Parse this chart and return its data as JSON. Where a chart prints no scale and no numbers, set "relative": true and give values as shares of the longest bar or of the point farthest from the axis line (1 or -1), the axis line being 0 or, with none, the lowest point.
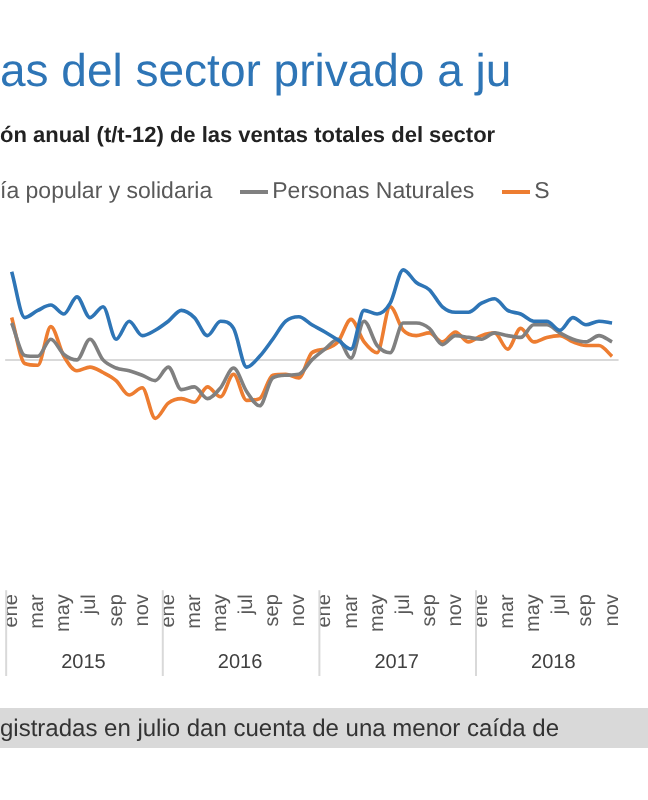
{
  "chart_data": {
    "type": "line",
    "title": "as del sector privado a ju",
    "subtitle": "ón anual (t/t-12) de las ventas totales del sector",
    "relative": true,
    "grid": false,
    "legend": "top",
    "marker": "none",
    "line_style": "solid",
    "categories": [
      "ene",
      null,
      "mar",
      null,
      "may",
      null,
      "jul",
      null,
      "sep",
      null,
      "nov",
      null,
      "ene",
      null,
      "mar",
      null,
      "may",
      null,
      "jul",
      null,
      "sep",
      null,
      "nov",
      null,
      "ene",
      null,
      "mar",
      null,
      "may",
      null,
      "jul",
      null,
      "sep",
      null,
      "nov",
      null,
      "ene",
      null,
      "mar",
      null,
      "may",
      null,
      "jul",
      null,
      "sep",
      null,
      "nov"
    ],
    "series": [
      {
        "name": "ía popular y solidaria",
        "color": "#2e75b6",
        "values": [
          0.98,
          0.47,
          0.55,
          0.61,
          0.51,
          0.7,
          0.47,
          0.59,
          0.23,
          0.43,
          0.27,
          0.33,
          0.43,
          0.55,
          0.47,
          0.27,
          0.43,
          0.35,
          -0.08,
          0.04,
          0.23,
          0.43,
          0.48,
          0.39,
          0.31,
          0.22,
          0.12,
          0.55,
          0.51,
          0.63,
          1,
          0.86,
          0.78,
          0.59,
          0.53,
          0.53,
          0.63,
          0.68,
          0.55,
          0.51,
          0.43,
          0.43,
          0.33,
          0.47,
          0.39,
          0.43,
          0.41
        ]
      },
      {
        "name": "Personas Naturales",
        "color": "#808080",
        "values": [
          0.41,
          0.05,
          0.04,
          0.23,
          0.06,
          0,
          0.23,
          0,
          -0.09,
          -0.12,
          -0.17,
          -0.23,
          -0.08,
          -0.33,
          -0.3,
          -0.43,
          -0.31,
          -0.09,
          -0.35,
          -0.51,
          -0.2,
          -0.17,
          -0.16,
          0,
          0.12,
          0.23,
          0.02,
          0.43,
          0.16,
          0.08,
          0.41,
          0.41,
          0.35,
          0.17,
          0.27,
          0.25,
          0.23,
          0.3,
          0.27,
          0.25,
          0.39,
          0.39,
          0.3,
          0.23,
          0.2,
          0.27,
          0.2
        ]
      },
      {
        "name": "S",
        "color": "#ed7d31",
        "values": [
          0.47,
          -0.04,
          -0.06,
          0.37,
          0.04,
          -0.12,
          -0.08,
          -0.14,
          -0.23,
          -0.39,
          -0.31,
          -0.65,
          -0.48,
          -0.43,
          -0.47,
          -0.3,
          -0.41,
          -0.16,
          -0.45,
          -0.43,
          -0.17,
          -0.16,
          -0.2,
          0.08,
          0.12,
          0.2,
          0.45,
          0.2,
          0.08,
          0.59,
          0.33,
          0.27,
          0.3,
          0.2,
          0.31,
          0.2,
          0.27,
          0.3,
          0.12,
          0.35,
          0.2,
          0.25,
          0.27,
          0.2,
          0.16,
          0.16,
          0.04
        ]
      }
    ],
    "annotations": [
      "2015",
      "2016",
      "2017",
      "2018",
      "gistradas en julio dan cuenta de una menor caída de"
    ]
  }
}
